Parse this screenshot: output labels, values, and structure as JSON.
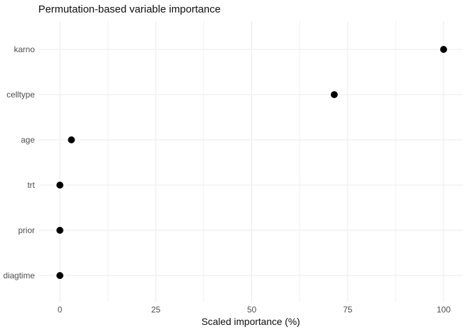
{
  "chart_data": {
    "type": "scatter",
    "title": "Permutation-based variable importance",
    "xlabel": "Scaled importance (%)",
    "ylabel": "",
    "categories": [
      "karno",
      "celltype",
      "age",
      "trt",
      "prior",
      "diagtime"
    ],
    "values": [
      100,
      71.5,
      3,
      0,
      0,
      0
    ],
    "x_ticks": [
      0,
      25,
      50,
      75,
      100
    ],
    "x_minor_ticks": [
      12.5,
      37.5,
      62.5,
      87.5
    ],
    "xlim": [
      -5.6,
      105
    ],
    "grid": true,
    "legend": "none",
    "point_color": "#000000",
    "major_grid_color": "#ebebeb",
    "minor_grid_color": "#f1f1f1",
    "axis_text_color": "#4d4d4d",
    "title_color": "#0d0d0d",
    "background_color": "#ffffff"
  }
}
